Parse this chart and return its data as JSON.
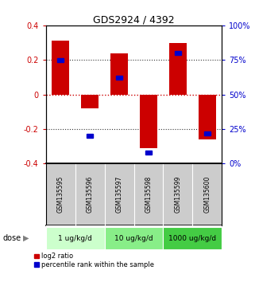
{
  "title": "GDS2924 / 4392",
  "samples": [
    "GSM135595",
    "GSM135596",
    "GSM135597",
    "GSM135598",
    "GSM135599",
    "GSM135600"
  ],
  "log2_ratio": [
    0.31,
    -0.08,
    0.24,
    -0.31,
    0.3,
    -0.26
  ],
  "percentile_rank": [
    75,
    20,
    62,
    8,
    80,
    22
  ],
  "ylim": [
    -0.4,
    0.4
  ],
  "yticks_left": [
    -0.4,
    -0.2,
    0.0,
    0.2,
    0.4
  ],
  "yticks_right": [
    0,
    25,
    50,
    75,
    100
  ],
  "bar_color": "#cc0000",
  "square_color": "#0000cc",
  "zero_line_color": "#cc0000",
  "dotted_line_color": "#333333",
  "dose_groups": [
    {
      "label": "1 ug/kg/d",
      "cols": [
        0,
        1
      ],
      "color": "#ccffcc"
    },
    {
      "label": "10 ug/kg/d",
      "cols": [
        2,
        3
      ],
      "color": "#88ee88"
    },
    {
      "label": "1000 ug/kg/d",
      "cols": [
        4,
        5
      ],
      "color": "#44cc44"
    }
  ],
  "dose_label": "dose",
  "legend_red": "log2 ratio",
  "legend_blue": "percentile rank within the sample",
  "background_color": "#ffffff",
  "plot_bg_color": "#ffffff",
  "gray_bg": "#cccccc"
}
